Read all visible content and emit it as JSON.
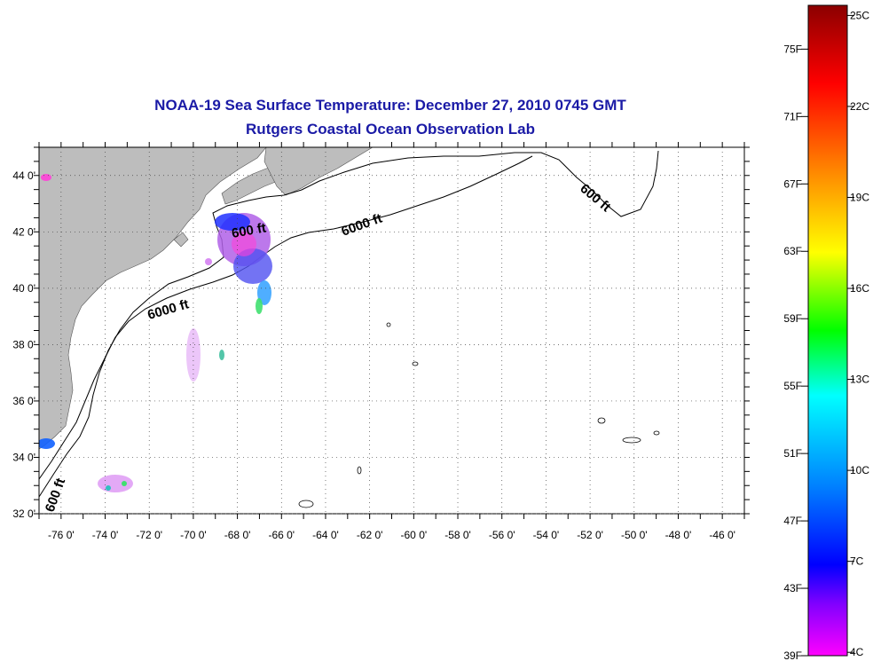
{
  "title": "NOAA-19 Sea Surface Temperature:  December 27, 2010 0745 GMT",
  "subtitle": "Rutgers Coastal Ocean Observation Lab",
  "map": {
    "lon_range": [
      -77,
      -45
    ],
    "lat_range": [
      32,
      45
    ],
    "lon_ticks": [
      "-76 0'",
      "-74 0'",
      "-72 0'",
      "-70 0'",
      "-68 0'",
      "-66 0'",
      "-64 0'",
      "-62 0'",
      "-60 0'",
      "-58 0'",
      "-56 0'",
      "-54 0'",
      "-52 0'",
      "-50 0'",
      "-48 0'",
      "-46 0'"
    ],
    "lat_ticks": [
      "44 0'",
      "42 0'",
      "40 0'",
      "38 0'",
      "36 0'",
      "34 0'",
      "32 0'"
    ],
    "grid": "dotted",
    "land_color": "#bdbdbd",
    "contour_labels": [
      "600 ft",
      "6000 ft",
      "6000 ft",
      "600 ft",
      "600 ft"
    ]
  },
  "colorbar": {
    "fahrenheit_labels": [
      "75F",
      "71F",
      "67F",
      "63F",
      "59F",
      "55F",
      "51F",
      "47F",
      "43F",
      "39F"
    ],
    "celsius_labels": [
      "25C",
      "22C",
      "19C",
      "16C",
      "13C",
      "10C",
      "7C",
      "4C"
    ],
    "colors": [
      "#8b0000",
      "#ff0000",
      "#ff8c00",
      "#ffff00",
      "#00ff00",
      "#00ffff",
      "#0080ff",
      "#0000ff",
      "#8000ff",
      "#ff00ff"
    ]
  }
}
